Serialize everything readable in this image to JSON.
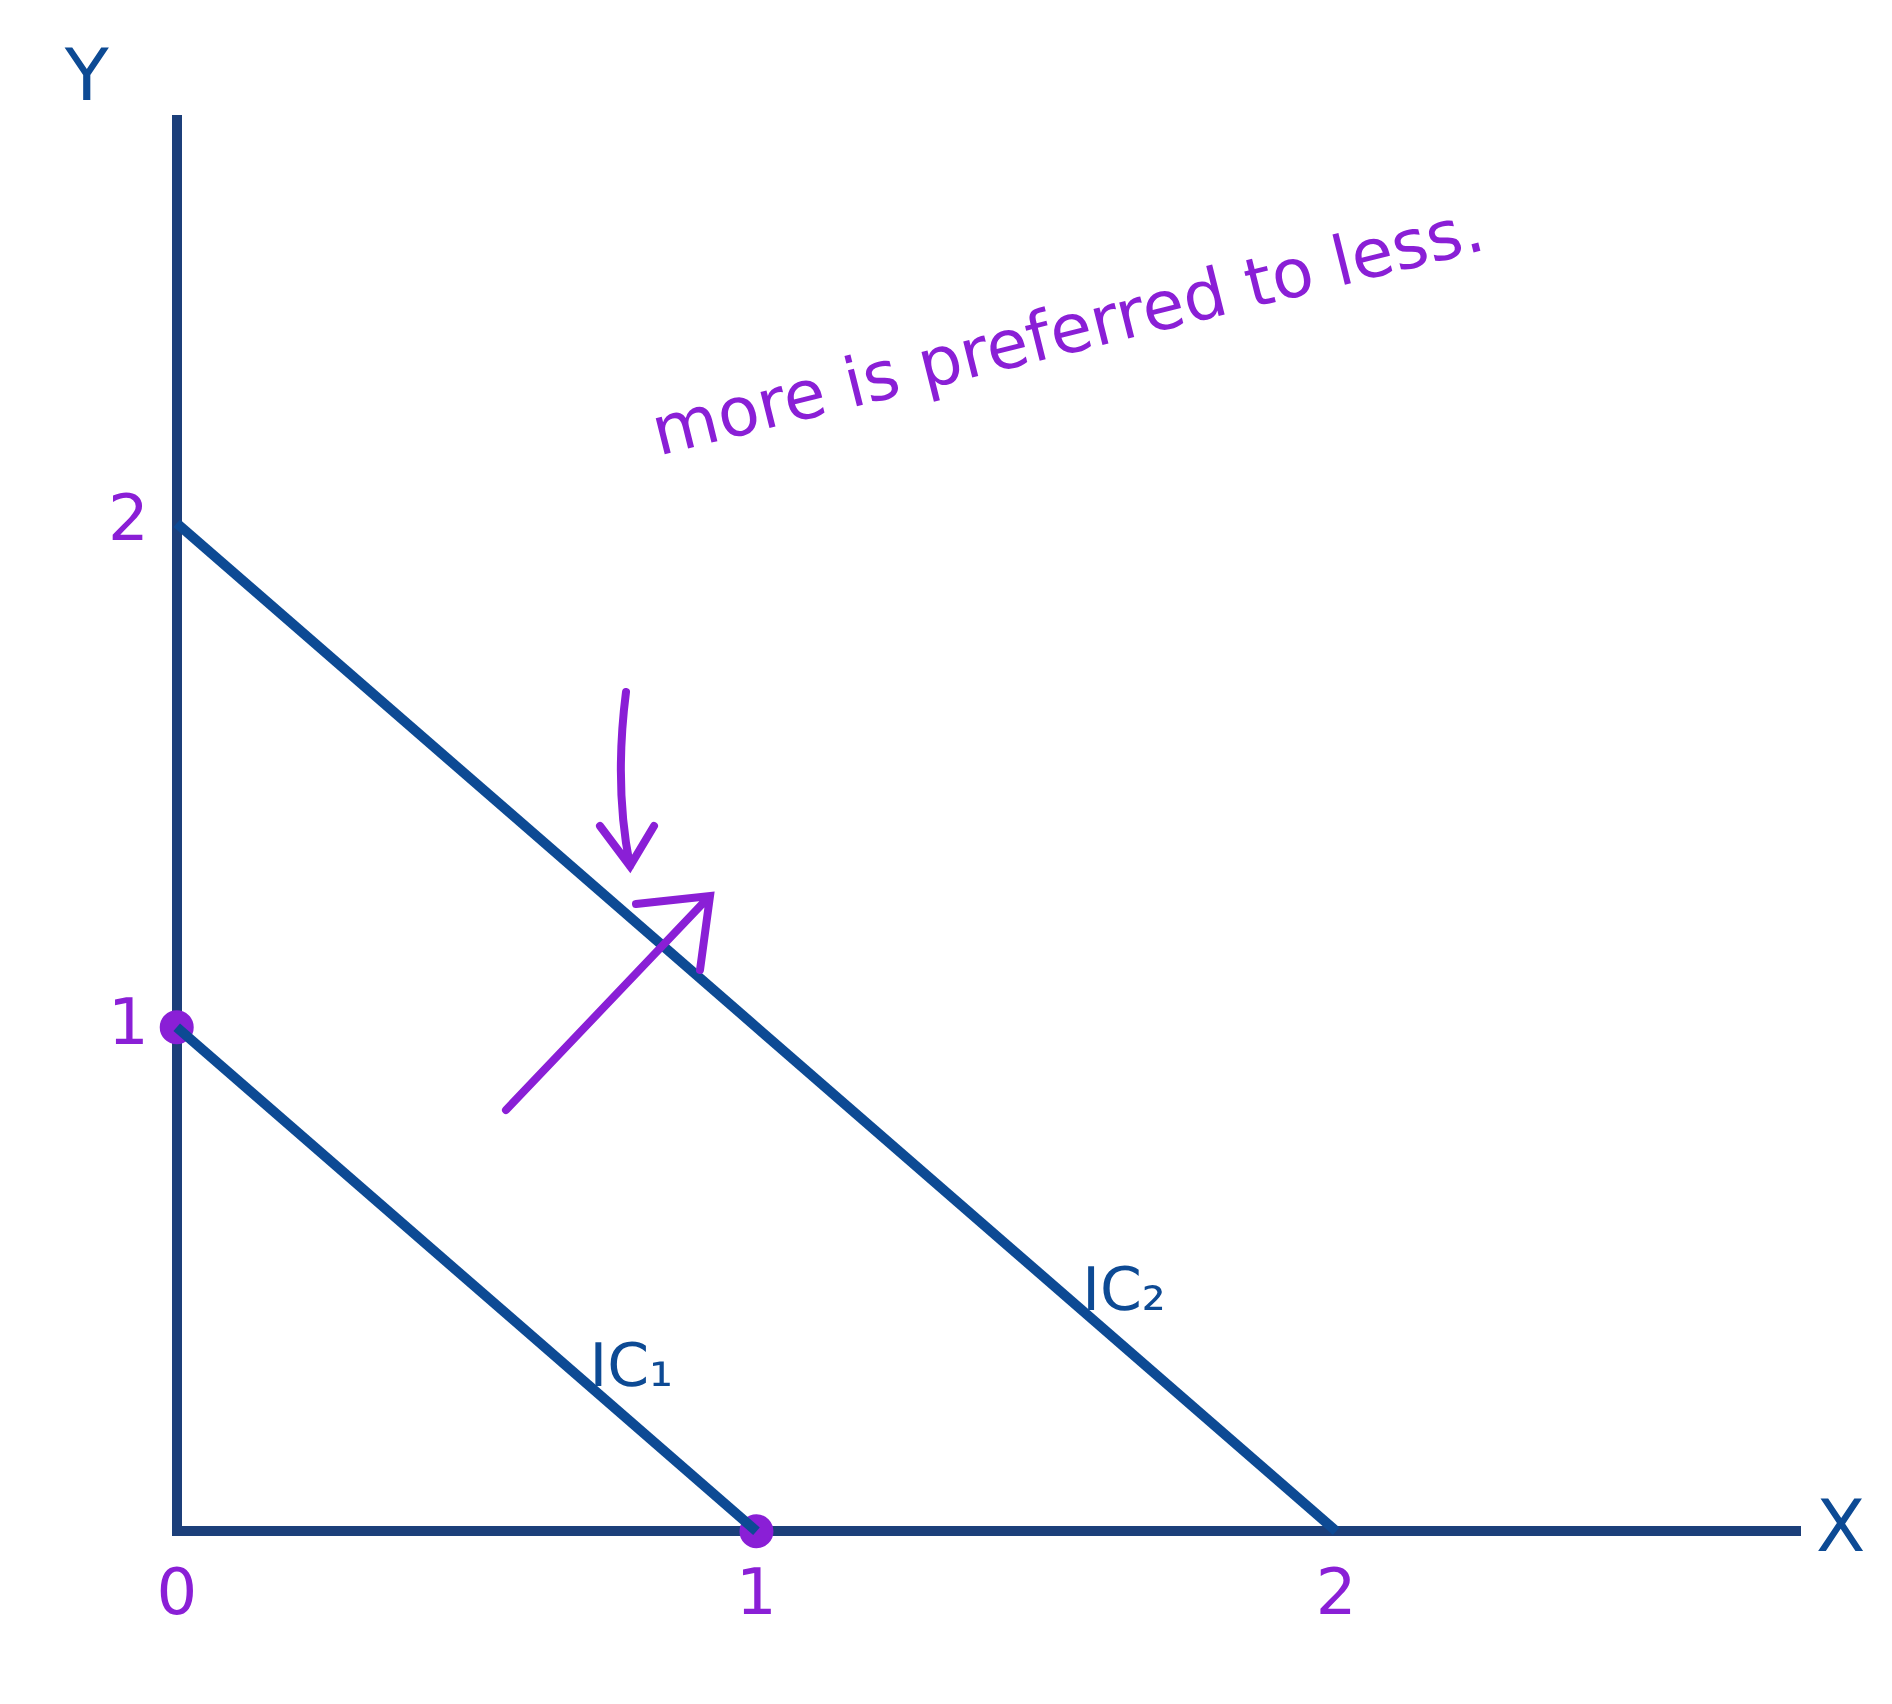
{
  "chart_data": {
    "type": "line",
    "xlabel": "X",
    "ylabel": "Y",
    "xlim": [
      0,
      2.8
    ],
    "ylim": [
      0,
      2.8
    ],
    "xticks": [
      0,
      1,
      2
    ],
    "yticks": [
      1,
      2
    ],
    "grid": false,
    "legend": false,
    "marker": "none",
    "line_style": "solid",
    "annotations": [
      "more is preferred to less."
    ],
    "series": [
      {
        "name": "IC₁",
        "color": "#0d4a94",
        "x": [
          0,
          1
        ],
        "values": [
          1,
          0
        ]
      },
      {
        "name": "IC₂",
        "color": "#0d4a94",
        "x": [
          0,
          2
        ],
        "values": [
          2,
          0
        ]
      },
      {
        "type": "scatter",
        "color": "#8a1fd6",
        "marker": "circle",
        "x": [
          0,
          1
        ],
        "values": [
          1,
          0
        ]
      }
    ]
  }
}
